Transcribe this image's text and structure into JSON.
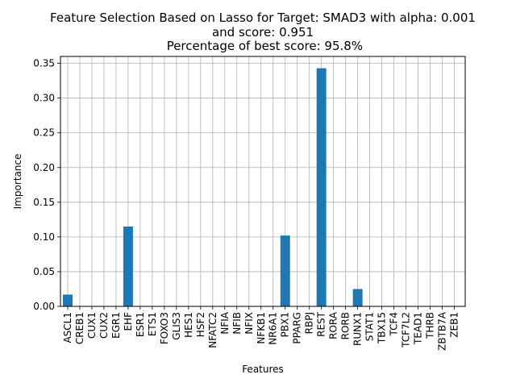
{
  "chart_data": {
    "type": "bar",
    "title_lines": [
      "Feature Selection Based on Lasso for Target: SMAD3 with alpha: 0.001",
      "and score: 0.951",
      " Percentage of best score: 95.8%"
    ],
    "xlabel": "Features",
    "ylabel": "Importance",
    "ylim": [
      0,
      0.36
    ],
    "yticks": [
      0.0,
      0.05,
      0.1,
      0.15,
      0.2,
      0.25,
      0.3,
      0.35
    ],
    "ytick_labels": [
      "0.00",
      "0.05",
      "0.10",
      "0.15",
      "0.20",
      "0.25",
      "0.30",
      "0.35"
    ],
    "grid": true,
    "bar_color": "#1f77b4",
    "categories": [
      "ASCL1",
      "CREB1",
      "CUX1",
      "CUX2",
      "EGR1",
      "EHF",
      "ESR1",
      "ETS1",
      "FOXO3",
      "GLIS3",
      "HES1",
      "HSF2",
      "NFATC2",
      "NFIA",
      "NFIB",
      "NFIX",
      "NFKB1",
      "NR6A1",
      "PBX1",
      "PPARG",
      "RBPJ",
      "REST",
      "RORA",
      "RORB",
      "RUNX1",
      "STAT1",
      "TBX15",
      "TCF4",
      "TCF7L2",
      "TEAD1",
      "THRB",
      "ZBTB7A",
      "ZEB1"
    ],
    "values": [
      0.017,
      0,
      0,
      0,
      0,
      0.115,
      0,
      0,
      0,
      0,
      0,
      0,
      0,
      0,
      0,
      0,
      0,
      0,
      0.102,
      0,
      0,
      0.343,
      0,
      0,
      0.025,
      0,
      0,
      0,
      0,
      0,
      0,
      0,
      0
    ]
  }
}
